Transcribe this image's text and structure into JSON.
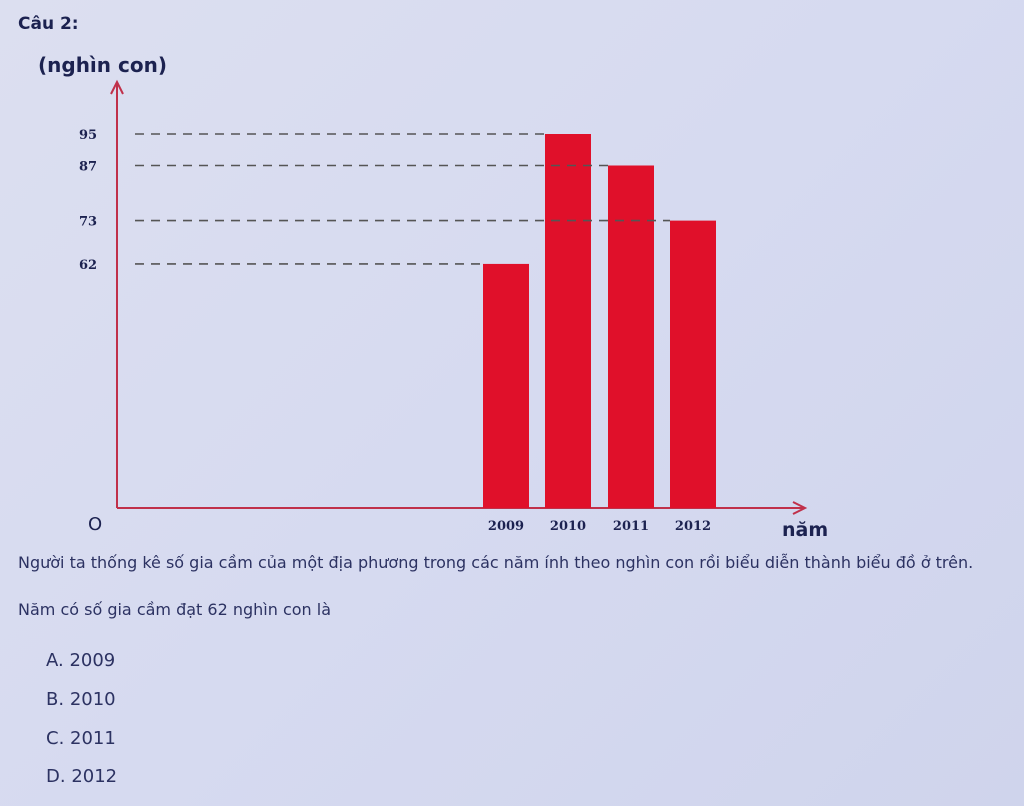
{
  "question_title": "Câu 2:",
  "description": "Người ta thống kê số gia cầm của một địa phương trong các năm ính theo nghìn con rồi biểu diễn thành biểu đồ ở trên.",
  "question": "Năm có số gia cầm đạt 62 nghìn con là",
  "options": [
    {
      "letter": "A.",
      "text": "2009"
    },
    {
      "letter": "B.",
      "text": "2010"
    },
    {
      "letter": "C.",
      "text": "2011"
    },
    {
      "letter": "D.",
      "text": "2012"
    }
  ],
  "chart_data": {
    "type": "bar",
    "categories": [
      "2009",
      "2010",
      "2011",
      "2012"
    ],
    "values": [
      62,
      95,
      87,
      73
    ],
    "ylabel": "(nghìn con)",
    "xlabel": "năm",
    "origin_label": "O",
    "yticks": [
      62,
      73,
      87,
      95
    ],
    "ylim": [
      0,
      95
    ],
    "bar_color": "#e0102a",
    "axis_color": "#c0304a",
    "grid": false,
    "reference_lines": "dashed from each tick to bar top"
  }
}
